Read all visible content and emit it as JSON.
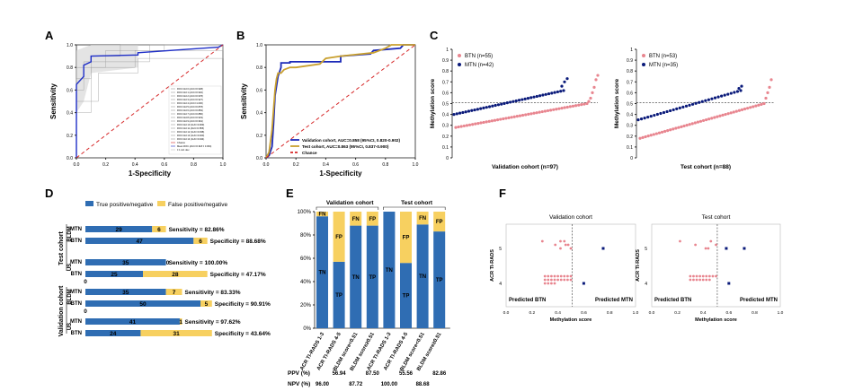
{
  "panel_letters": [
    "A",
    "B",
    "C",
    "D",
    "E",
    "F"
  ],
  "chart_data": [
    {
      "panel": "A",
      "type": "line",
      "xlabel": "1-Specificity",
      "ylabel": "Sensitivity",
      "xlim": [
        0,
        1
      ],
      "ylim": [
        0,
        1
      ],
      "xticks": [
        "0.0",
        "0.2",
        "0.4",
        "0.6",
        "0.8",
        "1.0"
      ],
      "yticks": [
        "0.0",
        "0.2",
        "0.4",
        "0.6",
        "0.8",
        "1.0"
      ],
      "legend_entries": [
        "ROC fold 0 (AUC=0.938)",
        "ROC fold 1 (AUC=0.902)",
        "ROC fold 2 (AUC=0.978)",
        "ROC fold 3 (AUC=0.927)",
        "ROC fold 4 (AUC=1.000)",
        "ROC fold 5 (AUC=0.878)",
        "ROC fold 6 (AUC=0.869)",
        "ROC fold 7 (AUC=0.886)",
        "ROC fold 8 (AUC=0.933)",
        "ROC fold 9 (AUC=0.964)",
        "ROC fold 10 (AUC=0.909)",
        "ROC fold 11 (AUC=0.855)",
        "ROC fold 12 (AUC=0.938)",
        "ROC fold 13 (AUC=0.920)",
        "ROC fold 14 (AUC=0.944)",
        "Chance",
        "Mean ROC (AUC=0.918 ± 0.064)",
        "± 1 std. dev."
      ],
      "series": [
        {
          "name": "Mean ROC (AUC=0.918 ± 0.064)",
          "x": [
            0,
            0,
            0.05,
            0.05,
            0.1,
            0.1,
            0.42,
            0.42,
            0.97,
            1.0
          ],
          "y": [
            0,
            0.65,
            0.72,
            0.82,
            0.85,
            0.9,
            0.91,
            0.93,
            0.98,
            1.0
          ]
        },
        {
          "name": "Chance",
          "x": [
            0,
            1
          ],
          "y": [
            0,
            1
          ]
        }
      ]
    },
    {
      "panel": "B",
      "type": "line",
      "xlabel": "1-Specificity",
      "ylabel": "Sensitivity",
      "xlim": [
        0,
        1
      ],
      "ylim": [
        0,
        1
      ],
      "xticks": [
        "0.0",
        "0.2",
        "0.4",
        "0.6",
        "0.8",
        "1.0"
      ],
      "yticks": [
        "0.0",
        "0.2",
        "0.4",
        "0.6",
        "0.8",
        "1.0"
      ],
      "series": [
        {
          "name": "Validation cohort, AUC=0.858 (95%CI, 0.820-0.902)",
          "color": "#1c2ab8",
          "x": [
            0,
            0.02,
            0.04,
            0.05,
            0.06,
            0.08,
            0.1,
            0.1,
            0.16,
            0.16,
            0.5,
            0.5,
            0.7,
            0.72,
            0.9,
            0.92,
            1.0
          ],
          "y": [
            0,
            0.02,
            0.1,
            0.3,
            0.55,
            0.72,
            0.8,
            0.84,
            0.84,
            0.85,
            0.85,
            0.9,
            0.92,
            0.95,
            0.97,
            1.0,
            1.0
          ]
        },
        {
          "name": "Test cohort, AUC=0.863 (95%CI, 0.837-0.900)",
          "color": "#c9a02f",
          "x": [
            0,
            0.02,
            0.04,
            0.06,
            0.07,
            0.08,
            0.1,
            0.12,
            0.16,
            0.2,
            0.36,
            0.4,
            0.5,
            0.72,
            0.8,
            0.84,
            1.0
          ],
          "y": [
            0,
            0.05,
            0.25,
            0.6,
            0.7,
            0.75,
            0.75,
            0.78,
            0.8,
            0.8,
            0.83,
            0.88,
            0.9,
            0.93,
            0.97,
            1.0,
            1.0
          ]
        },
        {
          "name": "Chance",
          "color": "#d62728",
          "x": [
            0,
            1
          ],
          "y": [
            0,
            1
          ]
        }
      ]
    },
    {
      "panel": "C-left",
      "type": "scatter",
      "xlabel": "Validation cohort (n=97)",
      "ylabel": "Methylation score",
      "ylim": [
        0,
        1
      ],
      "yticks": [
        "0",
        "0.1",
        "0.2",
        "0.3",
        "0.4",
        "0.5",
        "0.6",
        "0.7",
        "0.8",
        "0.9",
        "1"
      ],
      "threshold": 0.51,
      "series": [
        {
          "name": "BTN (n=55)",
          "color": "#e8858f",
          "start": 0.28,
          "end": 0.5,
          "extra": [
            0.52,
            0.55,
            0.6,
            0.65,
            0.72,
            0.76
          ]
        },
        {
          "name": "MTN (n=42)",
          "color": "#0a1a7a",
          "start": 0.4,
          "end": 0.62,
          "extra": [
            0.66,
            0.7,
            0.73
          ]
        }
      ]
    },
    {
      "panel": "C-right",
      "type": "scatter",
      "xlabel": "Test cohort (n=88)",
      "ylabel": "Methylation score",
      "ylim": [
        0,
        1
      ],
      "yticks": [
        "0",
        "0.1",
        "0.2",
        "0.3",
        "0.4",
        "0.5",
        "0.6",
        "0.7",
        "0.8",
        "0.9",
        "1"
      ],
      "threshold": 0.51,
      "series": [
        {
          "name": "BTN (n=53)",
          "color": "#e8858f",
          "start": 0.18,
          "end": 0.5,
          "extra": [
            0.55,
            0.6,
            0.65,
            0.72
          ]
        },
        {
          "name": "MTN (n=35)",
          "color": "#0a1a7a",
          "start": 0.35,
          "end": 0.62,
          "extra": [
            0.64,
            0.66
          ]
        }
      ]
    },
    {
      "panel": "D",
      "type": "bar",
      "legend": [
        "True positive/negative",
        "False positive/negative"
      ],
      "groups": [
        {
          "cohort": "Test cohort",
          "method": "BLDM",
          "rows": [
            {
              "label": "MTN",
              "tp": 29,
              "fp": 6,
              "stat": "Sensitivity = 82.86%"
            },
            {
              "label": "BTN",
              "tp": 47,
              "fp": 6,
              "stat": "Specificity = 88.68%"
            }
          ]
        },
        {
          "cohort": "Test cohort",
          "method": "US",
          "rows": [
            {
              "label": "MTN",
              "tp": 35,
              "fp": 0,
              "stat": "Sensitivity = 100.00%"
            },
            {
              "label": "BTN",
              "tp": 25,
              "fp": 28,
              "stat": "Specificity = 47.17%"
            }
          ]
        },
        {
          "cohort": "Validation cohort",
          "method": "BLDM",
          "rows": [
            {
              "label": "MTN",
              "tp": 35,
              "fp": 7,
              "stat": "Sensitivity = 83.33%"
            },
            {
              "label": "BTN",
              "tp": 50,
              "fp": 5,
              "stat": "Specificity = 90.91%"
            }
          ]
        },
        {
          "cohort": "Validation cohort",
          "method": "US",
          "rows": [
            {
              "label": "MTN",
              "tp": 41,
              "fp": 1,
              "stat": "Sensitivity = 97.62%"
            },
            {
              "label": "BTN",
              "tp": 24,
              "fp": 31,
              "stat": "Specificity = 43.64%"
            }
          ]
        }
      ],
      "zero_labels": [
        "0",
        "0"
      ]
    },
    {
      "panel": "E",
      "type": "bar",
      "ylim": [
        0,
        100
      ],
      "yticks": [
        "0%",
        "20%",
        "40%",
        "60%",
        "80%",
        "100%"
      ],
      "cohorts": [
        "Validation cohort",
        "Test cohort"
      ],
      "categories": [
        "ACR TI-RADS 1-3",
        "ACR TI-RADS 4-5",
        "BLDM score<0.51",
        "BLDM score≥0.51",
        "ACR TI-RADS 1-3",
        "ACR TI-RADS 4-5",
        "BLDM score<0.51",
        "BLDM score≥0.51"
      ],
      "series": [
        {
          "name": "TN",
          "color": "#2f6db3",
          "values": [
            96,
            57,
            88,
            88,
            100,
            56,
            89,
            83
          ]
        },
        {
          "name": "FN",
          "color": "#f7d060",
          "values": [
            4,
            43,
            12,
            12,
            0,
            44,
            11,
            17
          ]
        }
      ],
      "bar_labels": [
        [
          "FN",
          "TN"
        ],
        [
          "FP",
          "TP"
        ],
        [
          "FN",
          "TN"
        ],
        [
          "FP",
          "TP"
        ],
        [
          "",
          "TN"
        ],
        [
          "FP",
          "TP"
        ],
        [
          "FN",
          "TN"
        ],
        [
          "FP",
          "TP"
        ]
      ],
      "ppv_label": "PPV (%)",
      "npv_label": "NPV (%)",
      "ppv": [
        "",
        "56.94",
        "",
        "87.50",
        "",
        "55.56",
        "",
        "82.86"
      ],
      "npv": [
        "96.00",
        "",
        "87.72",
        "",
        "100.00",
        "",
        "88.68",
        ""
      ]
    },
    {
      "panel": "F",
      "type": "scatter",
      "titles": [
        "Validation cohort",
        "Test cohort"
      ],
      "xlabel": "Methylation score",
      "ylabel": "ACR TI-RADS",
      "xlim": [
        0,
        1
      ],
      "xticks": [
        "0.0",
        "0.2",
        "0.4",
        "0.6",
        "0.8",
        "1.0"
      ],
      "yticks": [
        "4",
        "5"
      ],
      "threshold": 0.51,
      "region_labels": [
        "Predicted BTN",
        "Predicted MTN"
      ]
    }
  ]
}
